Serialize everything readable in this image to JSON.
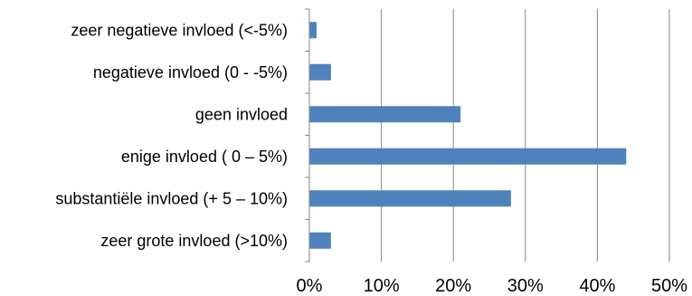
{
  "chart_data": {
    "type": "bar",
    "orientation": "horizontal",
    "categories": [
      "zeer negatieve invloed (<-5%)",
      "negatieve invloed (0 - -5%)",
      "geen invloed",
      "enige invloed ( 0 – 5%)",
      "substantiële invloed (+ 5 – 10%)",
      "zeer grote invloed (>10%)"
    ],
    "values": [
      1,
      3,
      21,
      44,
      28,
      3
    ],
    "xlim": [
      0,
      50
    ],
    "x_ticks": [
      0,
      10,
      20,
      30,
      40,
      50
    ],
    "x_tick_labels": [
      "0%",
      "10%",
      "20%",
      "30%",
      "40%",
      "50%"
    ],
    "grid": true,
    "legend": "none",
    "colors": {
      "bar": "#4F81BD",
      "grid": "#868686",
      "axis": "#868686"
    }
  }
}
